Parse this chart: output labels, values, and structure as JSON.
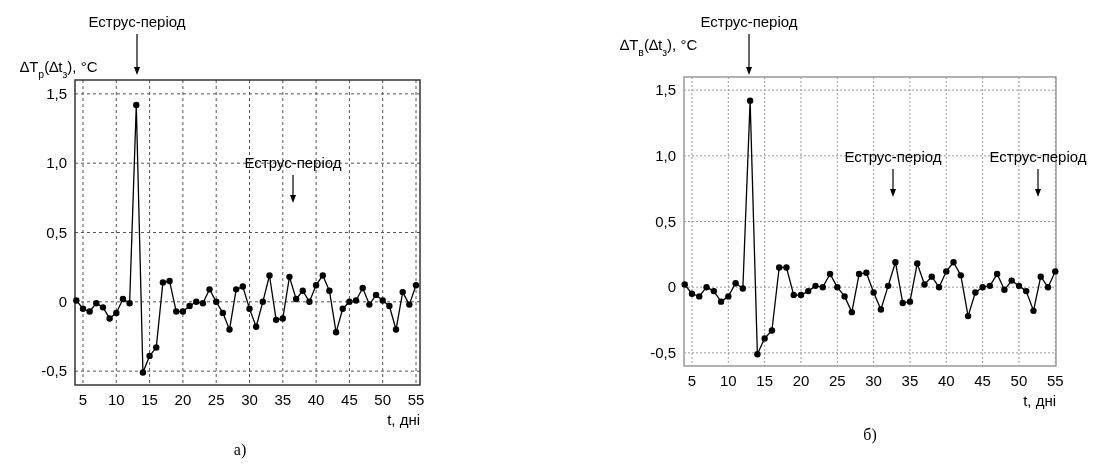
{
  "chart_data": [
    {
      "type": "line",
      "title": "а)",
      "xlabel": "t, дні",
      "ylabel": "∆T$_{р}$(∆t$_{з}$), °C",
      "xlim": [
        3.8,
        55.6
      ],
      "xticks": [
        5,
        10,
        15,
        20,
        25,
        30,
        35,
        40,
        45,
        50,
        55
      ],
      "ylim": [
        -0.6,
        1.6
      ],
      "yticks": [
        {
          "value": -0.5,
          "label": "-0,5"
        },
        0,
        {
          "value": 0.5,
          "label": "0,5"
        },
        {
          "value": 1.0,
          "label": "1,0"
        },
        {
          "value": 1.5,
          "label": "1,5"
        }
      ],
      "grid": true,
      "marker": "circle",
      "line_style": "solid",
      "annotations": [
        "Еструс-період",
        "Еструс-період"
      ],
      "x": [
        4,
        5,
        6,
        7,
        8,
        9,
        10,
        11,
        12,
        13,
        14,
        15,
        16,
        17,
        18,
        19,
        20,
        21,
        22,
        23,
        24,
        25,
        26,
        27,
        28,
        29,
        30,
        31,
        32,
        33,
        34,
        35,
        36,
        37,
        38,
        39,
        40,
        41,
        42,
        43,
        44,
        45,
        46,
        47,
        48,
        49,
        50,
        51,
        52,
        53,
        54,
        55
      ],
      "series": [
        {
          "color": "#000000",
          "values": [
            0.01,
            -0.05,
            -0.07,
            -0.01,
            -0.04,
            -0.12,
            -0.08,
            0.02,
            -0.01,
            1.42,
            -0.51,
            -0.39,
            -0.33,
            0.14,
            0.15,
            -0.07,
            -0.07,
            -0.03,
            0.0,
            -0.01,
            0.09,
            0.0,
            -0.08,
            -0.2,
            0.09,
            0.11,
            -0.05,
            -0.18,
            0.0,
            0.19,
            -0.13,
            -0.12,
            0.18,
            0.02,
            0.08,
            0.0,
            0.12,
            0.19,
            0.08,
            -0.22,
            -0.05,
            0.0,
            0.01,
            0.1,
            -0.02,
            0.05,
            0.01,
            -0.03,
            -0.2,
            0.07,
            -0.02,
            0.12
          ]
        }
      ]
    },
    {
      "type": "line",
      "title": "б)",
      "xlabel": "t, дні",
      "ylabel": "∆T$_{в}$(∆t$_{з}$), °C",
      "xlim": [
        3.9,
        55.1
      ],
      "xticks": [
        5,
        10,
        15,
        20,
        25,
        30,
        35,
        40,
        45,
        50,
        55
      ],
      "ylim": [
        -0.6,
        1.6
      ],
      "yticks": [
        {
          "value": -0.5,
          "label": "-0,5"
        },
        0,
        {
          "value": 0.5,
          "label": "0,5"
        },
        {
          "value": 1.0,
          "label": "1,0"
        },
        {
          "value": 1.5,
          "label": "1,5"
        }
      ],
      "grid": true,
      "marker": "circle",
      "line_style": "solid",
      "annotations": [
        "Еструс-період",
        "Еструс-період",
        "Еструс-період"
      ],
      "x": [
        4,
        5,
        6,
        7,
        8,
        9,
        10,
        11,
        12,
        13,
        14,
        15,
        16,
        17,
        18,
        19,
        20,
        21,
        22,
        23,
        24,
        25,
        26,
        27,
        28,
        29,
        30,
        31,
        32,
        33,
        34,
        35,
        36,
        37,
        38,
        39,
        40,
        41,
        42,
        43,
        44,
        45,
        46,
        47,
        48,
        49,
        50,
        51,
        52,
        53,
        54,
        55
      ],
      "series": [
        {
          "color": "#000000",
          "values": [
            0.02,
            -0.05,
            -0.07,
            0.0,
            -0.03,
            -0.11,
            -0.07,
            0.03,
            -0.01,
            1.42,
            -0.51,
            -0.39,
            -0.33,
            0.15,
            0.15,
            -0.06,
            -0.06,
            -0.03,
            0.01,
            0.0,
            0.1,
            0.0,
            -0.07,
            -0.19,
            0.1,
            0.11,
            -0.04,
            -0.17,
            0.01,
            0.19,
            -0.12,
            -0.11,
            0.18,
            0.02,
            0.08,
            0.0,
            0.12,
            0.19,
            0.09,
            -0.22,
            -0.04,
            0.0,
            0.01,
            0.1,
            -0.02,
            0.05,
            0.01,
            -0.03,
            -0.18,
            0.08,
            0.0,
            0.12
          ]
        }
      ]
    }
  ]
}
